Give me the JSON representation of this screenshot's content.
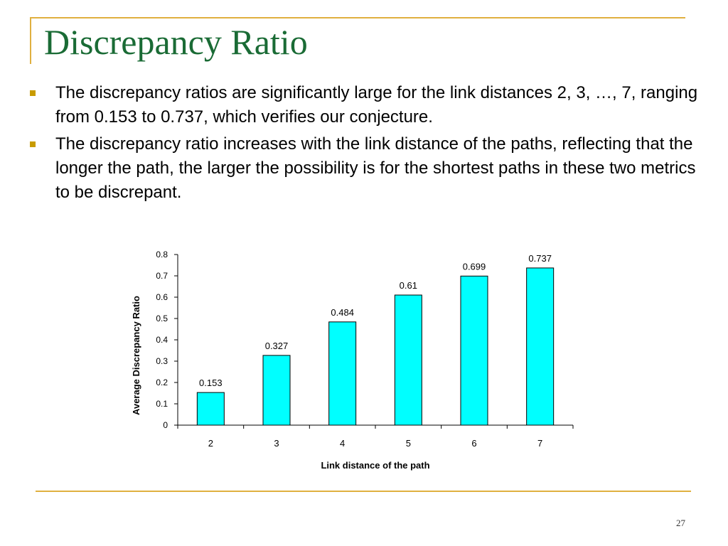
{
  "slide": {
    "title": "Discrepancy Ratio",
    "bullets": [
      "The discrepancy ratios are significantly large for the link distances 2, 3, …, 7, ranging from 0.153 to 0.737, which verifies our conjecture.",
      "The discrepancy ratio increases with the link distance of the paths, reflecting that the longer the path, the larger the possibility is for the shortest paths in these two metrics to be discrepant."
    ],
    "page_number": "27"
  },
  "colors": {
    "title": "#1a6b35",
    "accent_line": "#e0b040",
    "bullet": "#c89b00",
    "bar_fill": "#00ffff",
    "bar_stroke": "#000000"
  },
  "chart_data": {
    "type": "bar",
    "categories": [
      "2",
      "3",
      "4",
      "5",
      "6",
      "7"
    ],
    "values": [
      0.153,
      0.327,
      0.484,
      0.61,
      0.699,
      0.737
    ],
    "data_labels": [
      "0.153",
      "0.327",
      "0.484",
      "0.61",
      "0.699",
      "0.737"
    ],
    "yticks": [
      "0",
      "0.1",
      "0.2",
      "0.3",
      "0.4",
      "0.5",
      "0.6",
      "0.7",
      "0.8"
    ],
    "title": "",
    "xlabel": "Link distance of the path",
    "ylabel": "Average Discrepancy Ratio",
    "ylim": [
      0,
      0.8
    ],
    "grid": false,
    "legend": "none"
  }
}
